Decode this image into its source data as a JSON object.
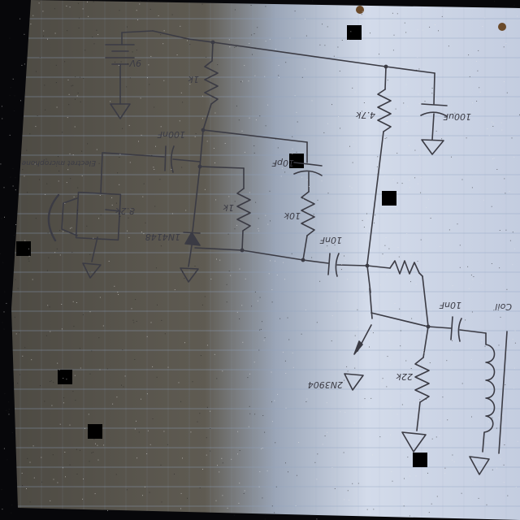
{
  "diagram": {
    "kind": "hand-drawn circuit schematic photographed on ruled notebook paper",
    "labels": {
      "battery_voltage": "9V",
      "r_top_left": "1k",
      "c_main": "100nF",
      "c_supply": "100uF",
      "r_collector": "4.7k",
      "c_feedback": "10pF",
      "r_mid": "1k",
      "r_bias": "10k",
      "mic_label": "Electret microphone",
      "mic_side": "8.2k",
      "diode_label": "1N4148",
      "c_coupling": "10nF",
      "transistor_label": "2N3904",
      "r_emitter": "22k",
      "c_output": "10nF",
      "coil_label": "Coil"
    },
    "colors": {
      "paper_dark": "#5a574e",
      "paper_light": "#c9d3e6",
      "ink": "#3b3b44",
      "ruling": "#8fa1bf",
      "background": "#07070a"
    }
  }
}
